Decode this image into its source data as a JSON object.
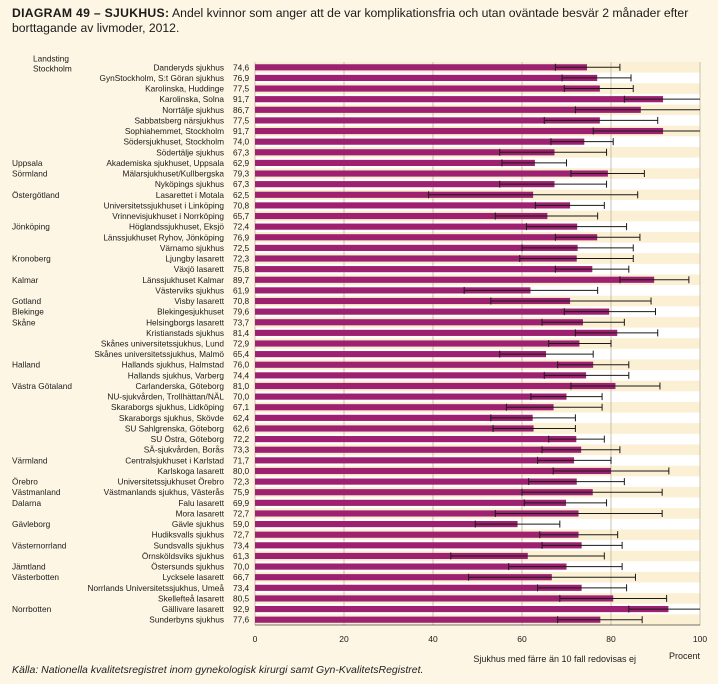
{
  "title_label": "DIAGRAM 49 – SJUKHUS:",
  "title_text": "Andel kvinnor som anger att de var komplikationsfria och utan oväntade besvär 2 månader efter borttagande av livmoder, 2012.",
  "source": "Källa: Nationella kvalitetsregistret inom gynekologisk kirurgi samt Gyn-KvalitetsRegistret.",
  "footnote": "Sjukhus med färre än 10 fall redovisas ej",
  "colors": {
    "bar": "#9e2070",
    "bg": "#fdf6e4",
    "plot_bg": "#ffffff",
    "band": "#fbf0d3",
    "error": "#1a1a1a"
  },
  "chart_data": {
    "type": "bar",
    "orientation": "horizontal",
    "xlabel": "Procent",
    "xlim": [
      0,
      100
    ],
    "xticks": [
      0,
      20,
      40,
      60,
      80,
      100
    ],
    "xtick_labels": [
      "0",
      "20",
      "40",
      "60",
      "80",
      "100"
    ],
    "grid": true,
    "rows": [
      {
        "region": "Landsting Stockholm",
        "name": "Danderyds sjukhus",
        "value": 74.6,
        "value_label": "74,6",
        "lo": 67.5,
        "hi": 82.0
      },
      {
        "region": "",
        "name": "GynStockholm, S:t Göran sjukhus",
        "value": 76.9,
        "value_label": "76,9",
        "lo": 69.0,
        "hi": 84.5
      },
      {
        "region": "",
        "name": "Karolinska, Huddinge",
        "value": 77.5,
        "value_label": "77,5",
        "lo": 69.5,
        "hi": 85.0
      },
      {
        "region": "",
        "name": "Karolinska, Solna",
        "value": 91.7,
        "value_label": "91,7",
        "lo": 83.0,
        "hi": 100.0
      },
      {
        "region": "",
        "name": "Norrtälje sjukhus",
        "value": 86.7,
        "value_label": "86,7",
        "lo": 72.0,
        "hi": 100.0
      },
      {
        "region": "",
        "name": "Sabbatsberg närsjukhus",
        "value": 77.5,
        "value_label": "77,5",
        "lo": 65.0,
        "hi": 90.5
      },
      {
        "region": "",
        "name": "Sophiahemmet, Stockholm",
        "value": 91.7,
        "value_label": "91,7",
        "lo": 76.0,
        "hi": 100.0
      },
      {
        "region": "",
        "name": "Södersjukhuset, Stockholm",
        "value": 74.0,
        "value_label": "74,0",
        "lo": 66.5,
        "hi": 80.5
      },
      {
        "region": "",
        "name": "Södertälje sjukhus",
        "value": 67.3,
        "value_label": "67,3",
        "lo": 55.0,
        "hi": 79.0
      },
      {
        "region": "Uppsala",
        "name": "Akademiska sjukhuset, Uppsala",
        "value": 62.9,
        "value_label": "62,9",
        "lo": 55.5,
        "hi": 70.0
      },
      {
        "region": "Sörmland",
        "name": "Mälarsjukhuset/Kullbergska",
        "value": 79.3,
        "value_label": "79,3",
        "lo": 71.0,
        "hi": 87.5
      },
      {
        "region": "",
        "name": "Nyköpings sjukhus",
        "value": 67.3,
        "value_label": "67,3",
        "lo": 55.0,
        "hi": 79.0
      },
      {
        "region": "Östergötland",
        "name": "Lasarettet i Motala",
        "value": 62.5,
        "value_label": "62,5",
        "lo": 39.0,
        "hi": 86.0
      },
      {
        "region": "",
        "name": "Universitetssjukhuset i Linköping",
        "value": 70.8,
        "value_label": "70,8",
        "lo": 63.0,
        "hi": 78.5
      },
      {
        "region": "",
        "name": "Vrinnevisjukhuset i Norrköping",
        "value": 65.7,
        "value_label": "65,7",
        "lo": 54.0,
        "hi": 77.0
      },
      {
        "region": "Jönköping",
        "name": "Höglandssjukhuset, Eksjö",
        "value": 72.4,
        "value_label": "72,4",
        "lo": 61.0,
        "hi": 83.5
      },
      {
        "region": "",
        "name": "Länssjukhuset Ryhov, Jönköping",
        "value": 76.9,
        "value_label": "76,9",
        "lo": 67.5,
        "hi": 86.5
      },
      {
        "region": "",
        "name": "Värnamo sjukhus",
        "value": 72.5,
        "value_label": "72,5",
        "lo": 60.0,
        "hi": 85.0
      },
      {
        "region": "Kronoberg",
        "name": "Ljungby lasarett",
        "value": 72.3,
        "value_label": "72,3",
        "lo": 59.5,
        "hi": 85.0
      },
      {
        "region": "",
        "name": "Växjö lasarett",
        "value": 75.8,
        "value_label": "75,8",
        "lo": 67.5,
        "hi": 84.0
      },
      {
        "region": "Kalmar",
        "name": "Länssjukhuset Kalmar",
        "value": 89.7,
        "value_label": "89,7",
        "lo": 82.0,
        "hi": 97.5
      },
      {
        "region": "",
        "name": "Västerviks sjukhus",
        "value": 61.9,
        "value_label": "61,9",
        "lo": 47.0,
        "hi": 77.0
      },
      {
        "region": "Gotland",
        "name": "Visby lasarett",
        "value": 70.8,
        "value_label": "70,8",
        "lo": 53.0,
        "hi": 89.0
      },
      {
        "region": "Blekinge",
        "name": "Blekingesjukhuset",
        "value": 79.6,
        "value_label": "79,6",
        "lo": 69.5,
        "hi": 90.0
      },
      {
        "region": "Skåne",
        "name": "Helsingborgs lasarett",
        "value": 73.7,
        "value_label": "73,7",
        "lo": 64.5,
        "hi": 83.0
      },
      {
        "region": "",
        "name": "Kristianstads sjukhus",
        "value": 81.4,
        "value_label": "81,4",
        "lo": 72.0,
        "hi": 90.5
      },
      {
        "region": "",
        "name": "Skånes universitetssjukhus, Lund",
        "value": 72.9,
        "value_label": "72,9",
        "lo": 66.0,
        "hi": 80.0
      },
      {
        "region": "",
        "name": "Skånes universitetssjukhus, Malmö",
        "value": 65.4,
        "value_label": "65,4",
        "lo": 55.0,
        "hi": 76.0
      },
      {
        "region": "Halland",
        "name": "Hallands sjukhus, Halmstad",
        "value": 76.0,
        "value_label": "76,0",
        "lo": 68.0,
        "hi": 84.0
      },
      {
        "region": "",
        "name": "Hallands sjukhus, Varberg",
        "value": 74.4,
        "value_label": "74,4",
        "lo": 65.0,
        "hi": 84.0
      },
      {
        "region": "Västra Götaland",
        "name": "Carlanderska, Göteborg",
        "value": 81.0,
        "value_label": "81,0",
        "lo": 71.0,
        "hi": 91.0
      },
      {
        "region": "",
        "name": "NU-sjukvården, Trollhättan/NÄL",
        "value": 70.0,
        "value_label": "70,0",
        "lo": 62.0,
        "hi": 78.0
      },
      {
        "region": "",
        "name": "Skaraborgs sjukhus, Lidköping",
        "value": 67.1,
        "value_label": "67,1",
        "lo": 56.5,
        "hi": 78.0
      },
      {
        "region": "",
        "name": "Skaraborgs sjukhus, Skövde",
        "value": 62.4,
        "value_label": "62,4",
        "lo": 53.0,
        "hi": 72.0
      },
      {
        "region": "",
        "name": "SU Sahlgrenska, Göteborg",
        "value": 62.6,
        "value_label": "62,6",
        "lo": 53.5,
        "hi": 72.0
      },
      {
        "region": "",
        "name": "SU Östra, Göteborg",
        "value": 72.2,
        "value_label": "72,2",
        "lo": 66.0,
        "hi": 78.5
      },
      {
        "region": "",
        "name": "SÄ-sjukvården, Borås",
        "value": 73.3,
        "value_label": "73,3",
        "lo": 64.5,
        "hi": 82.0
      },
      {
        "region": "Värmland",
        "name": "Centralsjukhuset i Karlstad",
        "value": 71.7,
        "value_label": "71,7",
        "lo": 63.5,
        "hi": 80.0
      },
      {
        "region": "",
        "name": "Karlskoga lasarett",
        "value": 80.0,
        "value_label": "80,0",
        "lo": 67.0,
        "hi": 93.0
      },
      {
        "region": "Örebro",
        "name": "Universitetssjukhuset Örebro",
        "value": 72.3,
        "value_label": "72,3",
        "lo": 61.5,
        "hi": 83.0
      },
      {
        "region": "Västmanland",
        "name": "Västmanlands sjukhus, Västerås",
        "value": 75.9,
        "value_label": "75,9",
        "lo": 60.0,
        "hi": 91.5
      },
      {
        "region": "Dalarna",
        "name": "Falu lasarett",
        "value": 69.9,
        "value_label": "69,9",
        "lo": 60.5,
        "hi": 79.0
      },
      {
        "region": "",
        "name": "Mora lasarett",
        "value": 72.7,
        "value_label": "72,7",
        "lo": 54.0,
        "hi": 91.5
      },
      {
        "region": "Gävleborg",
        "name": "Gävle sjukhus",
        "value": 59.0,
        "value_label": "59,0",
        "lo": 49.5,
        "hi": 68.5
      },
      {
        "region": "",
        "name": "Hudiksvalls sjukhus",
        "value": 72.7,
        "value_label": "72,7",
        "lo": 64.0,
        "hi": 81.5
      },
      {
        "region": "Västernorrland",
        "name": "Sundsvalls sjukhus",
        "value": 73.4,
        "value_label": "73,4",
        "lo": 64.5,
        "hi": 82.5
      },
      {
        "region": "",
        "name": "Örnsköldsviks sjukhus",
        "value": 61.3,
        "value_label": "61,3",
        "lo": 44.0,
        "hi": 78.5
      },
      {
        "region": "Jämtland",
        "name": "Östersunds sjukhus",
        "value": 70.0,
        "value_label": "70,0",
        "lo": 57.0,
        "hi": 82.5
      },
      {
        "region": "Västerbotten",
        "name": "Lycksele lasarett",
        "value": 66.7,
        "value_label": "66,7",
        "lo": 48.0,
        "hi": 85.5
      },
      {
        "region": "",
        "name": "Norrlands Universitetssjukhus, Umeå",
        "value": 73.4,
        "value_label": "73,4",
        "lo": 63.5,
        "hi": 83.5
      },
      {
        "region": "",
        "name": "Skellefteå lasarett",
        "value": 80.5,
        "value_label": "80,5",
        "lo": 68.5,
        "hi": 92.5
      },
      {
        "region": "Norrbotten",
        "name": "Gällivare lasarett",
        "value": 92.9,
        "value_label": "92,9",
        "lo": 84.0,
        "hi": 100.0
      },
      {
        "region": "",
        "name": "Sunderbyns sjukhus",
        "value": 77.6,
        "value_label": "77,6",
        "lo": 68.0,
        "hi": 87.0
      }
    ]
  }
}
